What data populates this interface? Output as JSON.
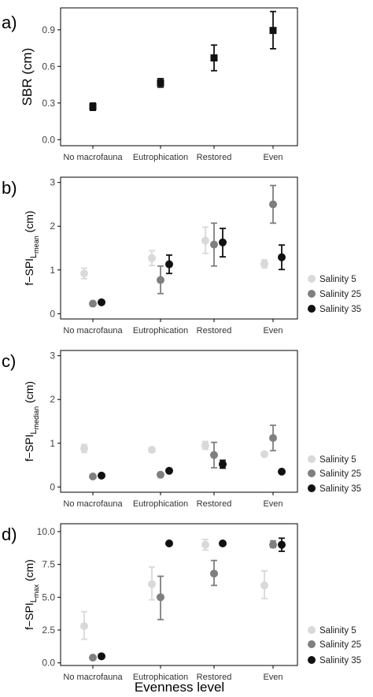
{
  "xlabel": "Evenness level",
  "categories": [
    "No macrofauna",
    "Eutrophication",
    "Restored",
    "Even"
  ],
  "colors": {
    "salinity5": "#d9d9d9",
    "salinity25": "#7f7f7f",
    "salinity35": "#111111",
    "single": "#111111"
  },
  "chart_data": [
    {
      "panel": "a)",
      "type": "scatter",
      "ylabel": "SBR (cm)",
      "ylim": [
        -0.05,
        1.08
      ],
      "yticks": [
        "0.0",
        "0.3",
        "0.6",
        "0.9"
      ],
      "categories": [
        "No macrofauna",
        "Eutrophication",
        "Restored",
        "Even"
      ],
      "series": [
        {
          "values": [
            0.27,
            0.465,
            0.67,
            0.895
          ],
          "err_low": [
            0.24,
            0.43,
            0.565,
            0.745
          ],
          "err_high": [
            0.3,
            0.5,
            0.775,
            1.05
          ]
        }
      ]
    },
    {
      "panel": "b)",
      "type": "scatter",
      "ylabel_main": "f−SPI",
      "ylabel_sub": "L",
      "ylabel_subsub": "mean",
      "ylabel_unit": "(cm)",
      "ylim": [
        -0.12,
        3.12
      ],
      "yticks": [
        "0",
        "1",
        "2",
        "3"
      ],
      "categories": [
        "No macrofauna",
        "Eutrophication",
        "Restored",
        "Even"
      ],
      "legend": [
        "Salinity 5",
        "Salinity 25",
        "Salinity 35"
      ],
      "series": [
        {
          "name": "Salinity 5",
          "values": [
            0.92,
            1.27,
            1.67,
            1.14
          ],
          "err_low": [
            0.8,
            1.1,
            1.38,
            1.05
          ],
          "err_high": [
            1.04,
            1.44,
            1.98,
            1.23
          ]
        },
        {
          "name": "Salinity 25",
          "values": [
            0.23,
            0.77,
            1.58,
            2.5
          ],
          "err_low": [
            0.23,
            0.46,
            1.09,
            2.07
          ],
          "err_high": [
            0.23,
            1.09,
            2.07,
            2.93
          ]
        },
        {
          "name": "Salinity 35",
          "values": [
            0.26,
            1.13,
            1.63,
            1.29
          ],
          "err_low": [
            0.26,
            0.92,
            1.3,
            1.01
          ],
          "err_high": [
            0.26,
            1.34,
            1.95,
            1.57
          ]
        }
      ]
    },
    {
      "panel": "c)",
      "type": "scatter",
      "ylabel_main": "f−SPI",
      "ylabel_sub": "L",
      "ylabel_subsub": "median",
      "ylabel_unit": "(cm)",
      "ylim": [
        -0.12,
        3.12
      ],
      "yticks": [
        "0",
        "1",
        "2",
        "3"
      ],
      "categories": [
        "No macrofauna",
        "Eutrophication",
        "Restored",
        "Even"
      ],
      "legend": [
        "Salinity 5",
        "Salinity 25",
        "Salinity 35"
      ],
      "series": [
        {
          "name": "Salinity 5",
          "values": [
            0.88,
            0.85,
            0.95,
            0.75
          ],
          "err_low": [
            0.79,
            0.8,
            0.86,
            0.75
          ],
          "err_high": [
            0.97,
            0.9,
            1.04,
            0.75
          ]
        },
        {
          "name": "Salinity 25",
          "values": [
            0.24,
            0.28,
            0.73,
            1.12
          ],
          "err_low": [
            0.24,
            0.28,
            0.44,
            0.83
          ],
          "err_high": [
            0.24,
            0.28,
            1.02,
            1.41
          ]
        },
        {
          "name": "Salinity 35",
          "values": [
            0.26,
            0.37,
            0.52,
            0.35
          ],
          "err_low": [
            0.26,
            0.37,
            0.43,
            0.35
          ],
          "err_high": [
            0.26,
            0.37,
            0.61,
            0.35
          ]
        }
      ]
    },
    {
      "panel": "d)",
      "type": "scatter",
      "ylabel_main": "f−SPI",
      "ylabel_sub": "L",
      "ylabel_subsub": "max",
      "ylabel_unit": "(cm)",
      "ylim": [
        -0.2,
        10.6
      ],
      "yticks": [
        "0.0",
        "2.5",
        "5.0",
        "7.5",
        "10.0"
      ],
      "categories": [
        "No macrofauna",
        "Eutrophication",
        "Restored",
        "Even"
      ],
      "legend": [
        "Salinity 5",
        "Salinity 25",
        "Salinity 35"
      ],
      "series": [
        {
          "name": "Salinity 5",
          "values": [
            2.8,
            6.0,
            9.0,
            5.9
          ],
          "err_low": [
            1.8,
            4.8,
            8.6,
            4.9
          ],
          "err_high": [
            3.9,
            7.3,
            9.4,
            7.0
          ]
        },
        {
          "name": "Salinity 25",
          "values": [
            0.4,
            5.0,
            6.8,
            9.0
          ],
          "err_low": [
            0.4,
            3.3,
            5.9,
            8.8
          ],
          "err_high": [
            0.4,
            6.6,
            7.8,
            9.3
          ]
        },
        {
          "name": "Salinity 35",
          "values": [
            0.5,
            9.1,
            9.1,
            9.0
          ],
          "err_low": [
            0.5,
            9.1,
            9.1,
            8.5
          ],
          "err_high": [
            0.5,
            9.1,
            9.1,
            9.5
          ]
        }
      ]
    }
  ]
}
